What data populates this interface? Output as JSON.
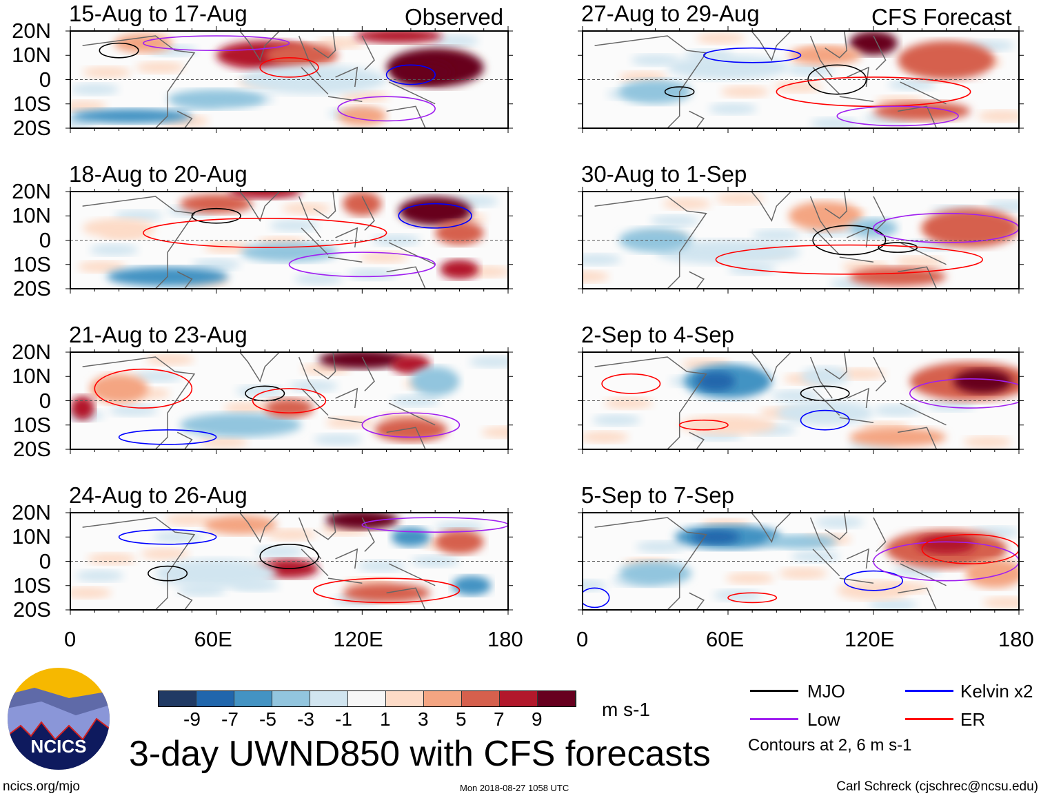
{
  "title": "3-day UWND850 with CFS forecasts",
  "site": "ncics.org/mjo",
  "timestamp": "Mon 2018-08-27 1058 UTC",
  "author": "Carl Schreck (cjschrec@ncsu.edu)",
  "logo_text": "NCICS",
  "columns": {
    "left": "Observed",
    "right": "CFS Forecast"
  },
  "panels_left": [
    "15-Aug to 17-Aug",
    "18-Aug to 20-Aug",
    "21-Aug to 23-Aug",
    "24-Aug to 26-Aug"
  ],
  "panels_right": [
    "27-Aug to 29-Aug",
    "30-Aug to 1-Sep",
    "2-Sep to 4-Sep",
    "5-Sep to 7-Sep"
  ],
  "lat_labels": [
    "20N",
    "10N",
    "0",
    "10S",
    "20S"
  ],
  "lon_labels": [
    "0",
    "60E",
    "120E",
    "180"
  ],
  "colorbar": {
    "labels": [
      "-9",
      "-7",
      "-5",
      "-3",
      "-1",
      "1",
      "3",
      "5",
      "7",
      "9"
    ],
    "units": "m s-1",
    "colors": [
      "#213a64",
      "#2166ac",
      "#4393c3",
      "#92c5de",
      "#d1e5f0",
      "#f7f7f7",
      "#fddbc7",
      "#f4a582",
      "#d6604d",
      "#b2182b",
      "#67001f"
    ]
  },
  "legend": {
    "mjo": "MJO",
    "kelvin": "Kelvin x2",
    "low": "Low",
    "er": "ER",
    "note": "Contours at 2, 6 m s-1",
    "colors": {
      "mjo": "#000000",
      "kelvin": "#0000ff",
      "low": "#a020f0",
      "er": "#ff0000"
    }
  }
}
